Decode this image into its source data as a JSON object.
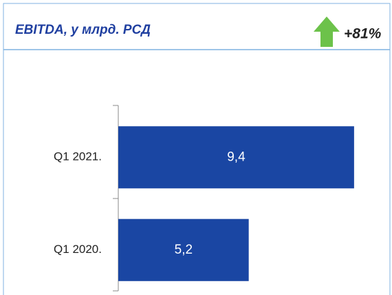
{
  "chart_data": {
    "type": "hbar",
    "title": "EBITDA, у млрд. РСД",
    "annotation": "+81%",
    "categories": [
      "Q1 2021.",
      "Q1 2020."
    ],
    "values": [
      9.4,
      5.2
    ],
    "value_labels": [
      "9,4",
      "5,2"
    ],
    "color": "#1a46a3",
    "xlim": [
      0,
      10.5
    ]
  }
}
